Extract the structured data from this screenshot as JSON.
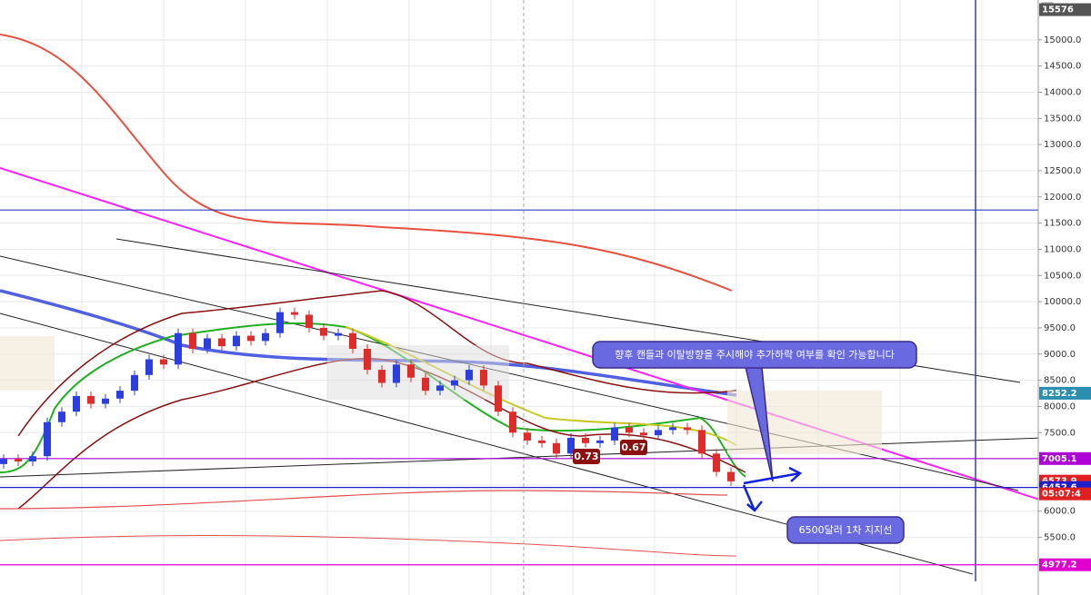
{
  "chart_data": {
    "type": "candlestick",
    "open": [
      6900,
      7000,
      6950,
      7050,
      7700,
      7900,
      8200,
      8050,
      8150,
      8300,
      8600,
      8900,
      8800,
      9400,
      9100,
      9300,
      9150,
      9350,
      9250,
      9400,
      9800,
      9750,
      9500,
      9350,
      9400,
      9100,
      8700,
      8450,
      8800,
      8550,
      8300,
      8400,
      8500,
      8700,
      8400,
      7900,
      7500,
      7350,
      7300,
      7100,
      7400,
      7300,
      7350,
      7600,
      7500,
      7450,
      7550,
      7600,
      7550,
      7100,
      6750
    ],
    "close": [
      7000,
      6950,
      7050,
      7700,
      7900,
      8200,
      8050,
      8150,
      8300,
      8600,
      8900,
      8800,
      9400,
      9100,
      9300,
      9150,
      9350,
      9250,
      9400,
      9800,
      9750,
      9500,
      9350,
      9400,
      9100,
      8700,
      8450,
      8800,
      8550,
      8300,
      8400,
      8500,
      8700,
      8400,
      7900,
      7500,
      7350,
      7300,
      7100,
      7400,
      7300,
      7350,
      7600,
      7500,
      7450,
      7550,
      7600,
      7550,
      7100,
      6750,
      6570
    ],
    "up_color": "#2b3fe0",
    "down_color": "#e02b2b",
    "ylim": [
      4400,
      15760
    ],
    "yticks": [
      {
        "value": 5500,
        "label": "5500.0"
      },
      {
        "value": 6000,
        "label": "6000.0"
      },
      {
        "value": 6500,
        "label": "6500.0"
      },
      {
        "value": 7000,
        "label": "7000.0"
      },
      {
        "value": 7500,
        "label": "7500.0"
      },
      {
        "value": 8000,
        "label": "8000.0"
      },
      {
        "value": 8500,
        "label": "8500.0"
      },
      {
        "value": 9000,
        "label": "9000.0"
      },
      {
        "value": 9500,
        "label": "9500.0"
      },
      {
        "value": 10000,
        "label": "10000.0"
      },
      {
        "value": 10500,
        "label": "10500.0"
      },
      {
        "value": 11000,
        "label": "11000.0"
      },
      {
        "value": 11500,
        "label": "11500.0"
      },
      {
        "value": 12000,
        "label": "12000.0"
      },
      {
        "value": 12500,
        "label": "12500.0"
      },
      {
        "value": 13000,
        "label": "13000.0"
      },
      {
        "value": 13500,
        "label": "13500.0"
      },
      {
        "value": 14000,
        "label": "14000.0"
      },
      {
        "value": 14500,
        "label": "14500.0"
      },
      {
        "value": 15000,
        "label": "15000.0"
      }
    ],
    "grid": true,
    "price_labels": [
      {
        "value": 15576,
        "label": "15576",
        "color": "#555555"
      },
      {
        "value": 8252.2,
        "label": "8252.2",
        "color": "#2a8fb0"
      },
      {
        "value": 7005.1,
        "label": "7005.1",
        "color": "#b000d8"
      },
      {
        "value": 6573.9,
        "label": "6573.9",
        "color": "#e02020"
      },
      {
        "value": 6452.6,
        "label": "6452.6",
        "color": "#2020c8"
      },
      {
        "value": 4977.2,
        "label": "4977.2",
        "color": "#e000d0"
      }
    ],
    "countdown": "05:07:4",
    "levels": [
      {
        "value": 11750,
        "color": "#3040c0"
      },
      {
        "value": 7005.1,
        "color": "#b000d8"
      },
      {
        "value": 6452.6,
        "color": "#2020c8"
      },
      {
        "value": 4977.2,
        "color": "#e000d0"
      }
    ],
    "fib_labels": [
      "0.73",
      "0.67"
    ],
    "annotations": [
      "향후 캔들과 이탈방향을 주시해야 추가하락 여부를 확인 가능합니다",
      "6500달러 1차 지지선"
    ]
  }
}
